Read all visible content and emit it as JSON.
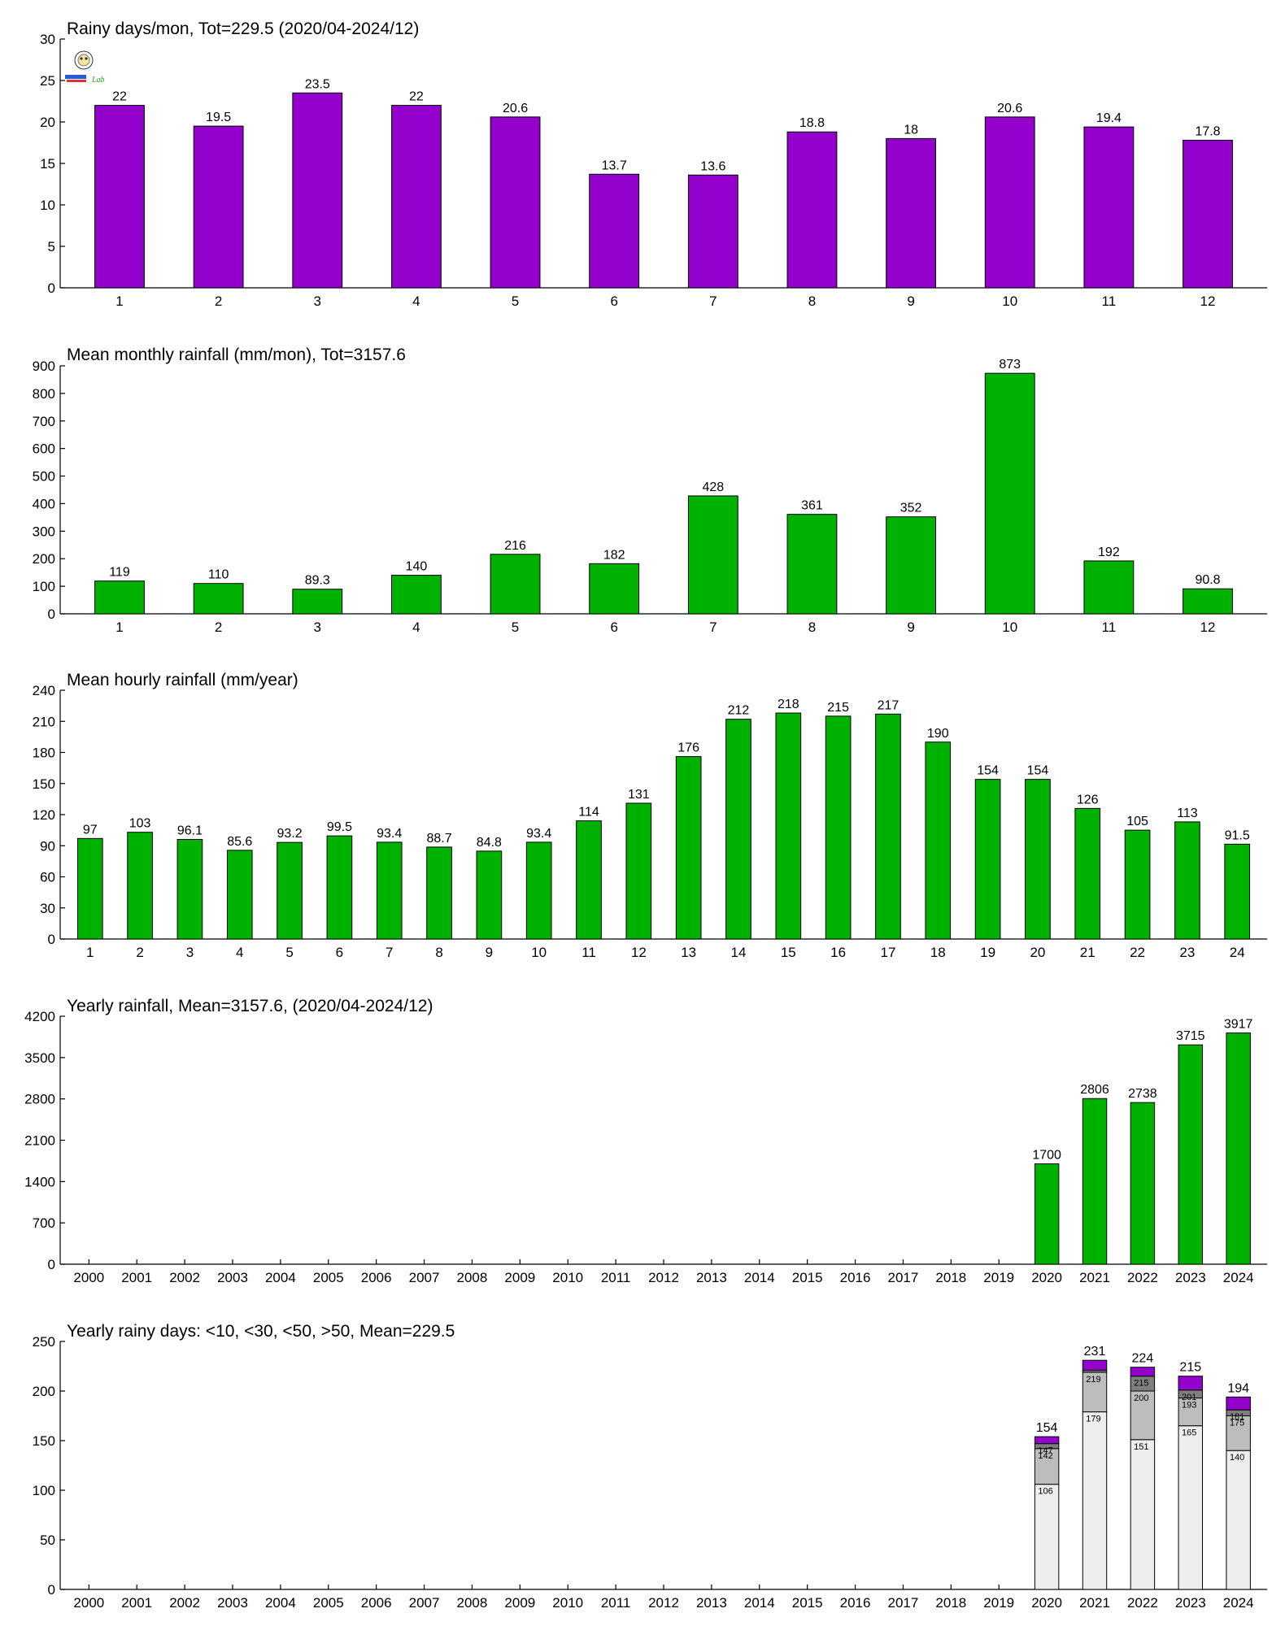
{
  "colors": {
    "purple": "#9400cc",
    "green": "#00b200",
    "stack_light": "#eeeeee",
    "stack_gray": "#bdbdbd",
    "stack_dark": "#7f7f7f",
    "stack_purple": "#9400cc"
  },
  "logo": {
    "icon": "owl-logo-icon",
    "text": "Lab"
  },
  "chart_data": [
    {
      "type": "bar",
      "title": "Rainy days/mon, Tot=229.5 (2020/04-2024/12)",
      "categories": [
        "1",
        "2",
        "3",
        "4",
        "5",
        "6",
        "7",
        "8",
        "9",
        "10",
        "11",
        "12"
      ],
      "values": [
        22,
        19.5,
        23.5,
        22,
        20.6,
        13.7,
        13.6,
        18.8,
        18,
        20.6,
        19.4,
        17.8
      ],
      "labels": [
        "22",
        "19.5",
        "23.5",
        "22",
        "20.6",
        "13.7",
        "13.6",
        "18.8",
        "18",
        "20.6",
        "19.4",
        "17.8"
      ],
      "ylim": [
        0,
        30
      ],
      "yticks": [
        0,
        5,
        10,
        15,
        20,
        25,
        30
      ],
      "color": "#9400cc",
      "grid": false
    },
    {
      "type": "bar",
      "title": "Mean monthly rainfall (mm/mon), Tot=3157.6",
      "categories": [
        "1",
        "2",
        "3",
        "4",
        "5",
        "6",
        "7",
        "8",
        "9",
        "10",
        "11",
        "12"
      ],
      "values": [
        119,
        110,
        89.3,
        140,
        216,
        182,
        428,
        361,
        352,
        873,
        192,
        90.8
      ],
      "labels": [
        "119",
        "110",
        "89.3",
        "140",
        "216",
        "182",
        "428",
        "361",
        "352",
        "873",
        "192",
        "90.8"
      ],
      "ylim": [
        0,
        900
      ],
      "yticks": [
        0,
        100,
        200,
        300,
        400,
        500,
        600,
        700,
        800,
        900
      ],
      "color": "#00b200",
      "grid": false
    },
    {
      "type": "bar",
      "title": "Mean hourly rainfall (mm/year)",
      "categories": [
        "1",
        "2",
        "3",
        "4",
        "5",
        "6",
        "7",
        "8",
        "9",
        "10",
        "11",
        "12",
        "13",
        "14",
        "15",
        "16",
        "17",
        "18",
        "19",
        "20",
        "21",
        "22",
        "23",
        "24"
      ],
      "values": [
        97,
        103,
        96.1,
        85.6,
        93.2,
        99.5,
        93.4,
        88.7,
        84.8,
        93.4,
        114,
        131,
        176,
        212,
        218,
        215,
        217,
        190,
        154,
        154,
        126,
        105,
        113,
        91.5
      ],
      "labels": [
        "97",
        "103",
        "96.1",
        "85.6",
        "93.2",
        "99.5",
        "93.4",
        "88.7",
        "84.8",
        "93.4",
        "114",
        "131",
        "176",
        "212",
        "218",
        "215",
        "217",
        "190",
        "154",
        "154",
        "126",
        "105",
        "113",
        "91.5"
      ],
      "ylim": [
        0,
        240
      ],
      "yticks": [
        0,
        30,
        60,
        90,
        120,
        150,
        180,
        210,
        240
      ],
      "color": "#00b200",
      "grid": false
    },
    {
      "type": "bar",
      "title": "Yearly rainfall, Mean=3157.6, (2020/04-2024/12)",
      "categories": [
        "2000",
        "2001",
        "2002",
        "2003",
        "2004",
        "2005",
        "2006",
        "2007",
        "2008",
        "2009",
        "2010",
        "2011",
        "2012",
        "2013",
        "2014",
        "2015",
        "2016",
        "2017",
        "2018",
        "2019",
        "2020",
        "2021",
        "2022",
        "2023",
        "2024"
      ],
      "values": [
        null,
        null,
        null,
        null,
        null,
        null,
        null,
        null,
        null,
        null,
        null,
        null,
        null,
        null,
        null,
        null,
        null,
        null,
        null,
        null,
        1700,
        2806,
        2738,
        3715,
        3917
      ],
      "labels": [
        "",
        "",
        "",
        "",
        "",
        "",
        "",
        "",
        "",
        "",
        "",
        "",
        "",
        "",
        "",
        "",
        "",
        "",
        "",
        "",
        "1700",
        "2806",
        "2738",
        "3715",
        "3917"
      ],
      "ylim": [
        0,
        4200
      ],
      "yticks": [
        0,
        700,
        1400,
        2100,
        2800,
        3500,
        4200
      ],
      "color": "#00b200",
      "grid": false
    },
    {
      "type": "bar",
      "stacked": true,
      "title": "Yearly rainy days: <10, <30, <50, >50, Mean=229.5",
      "categories": [
        "2000",
        "2001",
        "2002",
        "2003",
        "2004",
        "2005",
        "2006",
        "2007",
        "2008",
        "2009",
        "2010",
        "2011",
        "2012",
        "2013",
        "2014",
        "2015",
        "2016",
        "2017",
        "2018",
        "2019",
        "2020",
        "2021",
        "2022",
        "2023",
        "2024"
      ],
      "cumulative": [
        null,
        null,
        null,
        null,
        null,
        null,
        null,
        null,
        null,
        null,
        null,
        null,
        null,
        null,
        null,
        null,
        null,
        null,
        null,
        null,
        [
          106,
          142,
          147,
          154
        ],
        [
          179,
          219,
          221,
          231
        ],
        [
          151,
          200,
          215,
          224
        ],
        [
          165,
          193,
          201,
          215
        ],
        [
          140,
          175,
          181,
          194
        ]
      ],
      "stack_labels": [
        null,
        null,
        null,
        null,
        null,
        null,
        null,
        null,
        null,
        null,
        null,
        null,
        null,
        null,
        null,
        null,
        null,
        null,
        null,
        null,
        [
          "106",
          "142",
          "147"
        ],
        [
          "179",
          "219",
          ""
        ],
        [
          "151",
          "200",
          "215"
        ],
        [
          "165",
          "193",
          "201"
        ],
        [
          "140",
          "175",
          "181"
        ]
      ],
      "totals": [
        "",
        "",
        "",
        "",
        "",
        "",
        "",
        "",
        "",
        "",
        "",
        "",
        "",
        "",
        "",
        "",
        "",
        "",
        "",
        "",
        "154",
        "231",
        "224",
        "215",
        "194"
      ],
      "ylim": [
        0,
        250
      ],
      "yticks": [
        0,
        50,
        100,
        150,
        200,
        250
      ],
      "grid": false
    }
  ]
}
